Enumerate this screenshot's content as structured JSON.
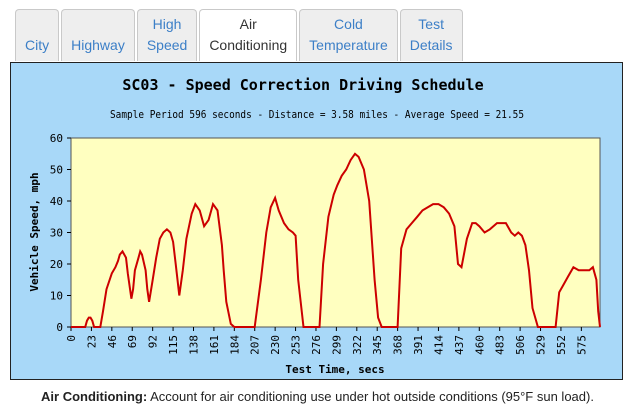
{
  "tabs": [
    {
      "line1": "",
      "line2": "City",
      "active": false
    },
    {
      "line1": "",
      "line2": "Highway",
      "active": false
    },
    {
      "line1": "High",
      "line2": "Speed",
      "active": false
    },
    {
      "line1": "Air",
      "line2": "Conditioning",
      "active": true
    },
    {
      "line1": "Cold",
      "line2": "Temperature",
      "active": false
    },
    {
      "line1": "Test",
      "line2": "Details",
      "active": false
    }
  ],
  "caption": {
    "label": "Air Conditioning:",
    "text": "Account for air conditioning use under hot outside conditions (95°F sun load)."
  },
  "chart_data": {
    "type": "line",
    "title": "SC03 - Speed Correction Driving Schedule",
    "subtitle": "Sample Period  596 seconds - Distance = 3.58 miles - Average Speed = 21.55",
    "xlabel": "Test Time, secs",
    "ylabel": "Vehicle Speed, mph",
    "xlim": [
      0,
      596
    ],
    "ylim": [
      0,
      60
    ],
    "x_ticks": [
      "0",
      "23",
      "46",
      "69",
      "92",
      "115",
      "138",
      "161",
      "184",
      "207",
      "230",
      "253",
      "276",
      "299",
      "322",
      "345",
      "368",
      "391",
      "414",
      "437",
      "460",
      "483",
      "506",
      "529",
      "552",
      "575"
    ],
    "y_ticks": [
      "0",
      "10",
      "20",
      "30",
      "40",
      "50",
      "60"
    ],
    "grid": false,
    "colors": {
      "line": "#cc0000",
      "plot_bg": "#ffffc0",
      "outer_bg": "#a8d8f8"
    },
    "x": [
      0,
      16,
      18,
      20,
      22,
      24,
      26,
      30,
      33,
      36,
      40,
      46,
      50,
      53,
      55,
      58,
      62,
      64,
      68,
      70,
      72,
      76,
      78,
      80,
      84,
      86,
      88,
      92,
      96,
      100,
      104,
      108,
      112,
      115,
      118,
      122,
      126,
      130,
      136,
      140,
      145,
      150,
      155,
      160,
      165,
      170,
      172,
      175,
      180,
      184,
      190,
      195,
      200,
      207,
      214,
      220,
      225,
      230,
      234,
      240,
      245,
      250,
      253,
      256,
      262,
      270,
      276,
      280,
      284,
      290,
      296,
      300,
      305,
      310,
      315,
      320,
      324,
      330,
      336,
      342,
      346,
      350,
      355,
      360,
      365,
      368,
      372,
      378,
      384,
      390,
      396,
      402,
      408,
      414,
      420,
      426,
      432,
      436,
      440,
      446,
      452,
      456,
      460,
      466,
      472,
      480,
      486,
      490,
      496,
      500,
      504,
      508,
      512,
      516,
      520,
      526,
      530,
      536,
      540,
      546,
      550,
      554,
      560,
      566,
      572,
      576,
      580,
      584,
      588,
      592,
      594,
      596
    ],
    "y": [
      0,
      0,
      2,
      3,
      3,
      2,
      0,
      0,
      0,
      5,
      12,
      17,
      19,
      21,
      23,
      24,
      22,
      17,
      9,
      12,
      18,
      22,
      24,
      23,
      18,
      12,
      8,
      15,
      22,
      28,
      30,
      31,
      30,
      27,
      20,
      10,
      18,
      28,
      36,
      39,
      37,
      32,
      34,
      39,
      37,
      26,
      18,
      8,
      1,
      0,
      0,
      0,
      0,
      0,
      15,
      30,
      38,
      41,
      37,
      33,
      31,
      30,
      29,
      15,
      0,
      0,
      0,
      0,
      20,
      35,
      42,
      45,
      48,
      50,
      53,
      55,
      54,
      50,
      40,
      15,
      3,
      0,
      0,
      0,
      0,
      0,
      25,
      31,
      33,
      35,
      37,
      38,
      39,
      39,
      38,
      36,
      32,
      20,
      19,
      28,
      33,
      33,
      32,
      30,
      31,
      33,
      33,
      33,
      30,
      29,
      30,
      29,
      26,
      18,
      6,
      0,
      0,
      0,
      0,
      0,
      11,
      13,
      16,
      19,
      18,
      18,
      18,
      18,
      19,
      15,
      5,
      0
    ]
  }
}
